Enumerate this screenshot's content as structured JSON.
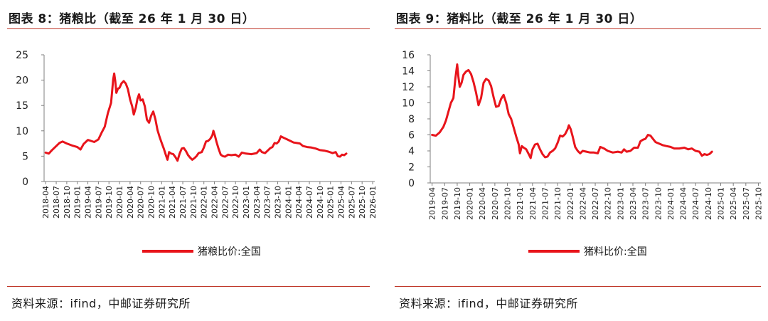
{
  "colors": {
    "line": "#e8141b",
    "accent": "#c0392b",
    "axis": "#7f7f7f"
  },
  "chart_data": [
    {
      "type": "line",
      "title": "图表 8：猪粮比（截至 26 年 1 月 30 日）",
      "source": "资料来源：ifind，中邮证券研究所",
      "ylim": [
        0,
        25
      ],
      "yticks": [
        0,
        5,
        10,
        15,
        20,
        25
      ],
      "x_labels": [
        "2018-04",
        "2018-07",
        "2018-10",
        "2019-01",
        "2019-04",
        "2019-07",
        "2019-10",
        "2020-01",
        "2020-04",
        "2020-07",
        "2020-10",
        "2021-01",
        "2021-04",
        "2021-07",
        "2021-10",
        "2022-01",
        "2022-04",
        "2022-07",
        "2022-10",
        "2023-01",
        "2023-04",
        "2023-07",
        "2023-10",
        "2024-01",
        "2024-04",
        "2024-07",
        "2024-10",
        "2025-01",
        "2025-04",
        "2025-07",
        "2025-10",
        "2026-01"
      ],
      "legend_position": "bottom-center",
      "grid": false,
      "series": [
        {
          "name": "猪粮比价:全国",
          "points": [
            [
              0,
              5.7
            ],
            [
              0.3,
              5.5
            ],
            [
              0.6,
              6.2
            ],
            [
              1,
              7.0
            ],
            [
              1.3,
              7.6
            ],
            [
              1.6,
              7.9
            ],
            [
              2,
              7.5
            ],
            [
              2.5,
              7.1
            ],
            [
              3,
              6.8
            ],
            [
              3.3,
              6.3
            ],
            [
              3.6,
              7.4
            ],
            [
              4,
              8.2
            ],
            [
              4.3,
              8.0
            ],
            [
              4.6,
              7.8
            ],
            [
              5,
              8.3
            ],
            [
              5.3,
              9.6
            ],
            [
              5.6,
              10.8
            ],
            [
              5.9,
              13.5
            ],
            [
              6.2,
              15.5
            ],
            [
              6.4,
              20.2
            ],
            [
              6.5,
              21.3
            ],
            [
              6.6,
              19.8
            ],
            [
              6.7,
              17.5
            ],
            [
              6.85,
              18.3
            ],
            [
              7,
              18.5
            ],
            [
              7.2,
              19.4
            ],
            [
              7.4,
              19.8
            ],
            [
              7.6,
              19.3
            ],
            [
              7.8,
              18.2
            ],
            [
              8,
              16.2
            ],
            [
              8.2,
              14.8
            ],
            [
              8.35,
              13.2
            ],
            [
              8.55,
              14.6
            ],
            [
              8.7,
              16.3
            ],
            [
              8.85,
              17.2
            ],
            [
              9,
              16.0
            ],
            [
              9.2,
              16.2
            ],
            [
              9.4,
              14.8
            ],
            [
              9.6,
              12.2
            ],
            [
              9.8,
              11.6
            ],
            [
              10,
              13.0
            ],
            [
              10.2,
              13.8
            ],
            [
              10.4,
              12.3
            ],
            [
              10.6,
              10.2
            ],
            [
              10.8,
              8.8
            ],
            [
              11,
              7.6
            ],
            [
              11.2,
              6.5
            ],
            [
              11.4,
              5.2
            ],
            [
              11.55,
              4.3
            ],
            [
              11.7,
              5.8
            ],
            [
              11.9,
              5.5
            ],
            [
              12.1,
              5.4
            ],
            [
              12.3,
              4.8
            ],
            [
              12.5,
              4.1
            ],
            [
              12.7,
              5.5
            ],
            [
              12.9,
              6.5
            ],
            [
              13.1,
              6.6
            ],
            [
              13.3,
              6.0
            ],
            [
              13.5,
              5.2
            ],
            [
              13.7,
              4.7
            ],
            [
              13.9,
              4.3
            ],
            [
              14.1,
              4.6
            ],
            [
              14.3,
              5.0
            ],
            [
              14.5,
              5.6
            ],
            [
              14.8,
              5.8
            ],
            [
              15,
              6.7
            ],
            [
              15.2,
              7.9
            ],
            [
              15.4,
              8.0
            ],
            [
              15.6,
              8.4
            ],
            [
              15.8,
              9.1
            ],
            [
              15.9,
              10.0
            ],
            [
              16.05,
              9.0
            ],
            [
              16.2,
              7.8
            ],
            [
              16.4,
              6.4
            ],
            [
              16.6,
              5.3
            ],
            [
              16.8,
              5.0
            ],
            [
              17,
              4.9
            ],
            [
              17.3,
              5.3
            ],
            [
              17.6,
              5.2
            ],
            [
              18,
              5.3
            ],
            [
              18.3,
              4.9
            ],
            [
              18.6,
              5.7
            ],
            [
              19,
              5.5
            ],
            [
              19.5,
              5.4
            ],
            [
              20,
              5.6
            ],
            [
              20.3,
              6.3
            ],
            [
              20.5,
              5.8
            ],
            [
              20.8,
              5.6
            ],
            [
              21,
              6.0
            ],
            [
              21.3,
              6.6
            ],
            [
              21.5,
              6.8
            ],
            [
              21.7,
              7.6
            ],
            [
              21.9,
              7.5
            ],
            [
              22.1,
              7.9
            ],
            [
              22.3,
              8.9
            ],
            [
              22.6,
              8.6
            ],
            [
              22.9,
              8.3
            ],
            [
              23.2,
              8.0
            ],
            [
              23.5,
              7.7
            ],
            [
              23.8,
              7.6
            ],
            [
              24.1,
              7.5
            ],
            [
              24.4,
              7.0
            ],
            [
              24.8,
              6.8
            ],
            [
              25.2,
              6.7
            ],
            [
              25.6,
              6.5
            ],
            [
              26,
              6.2
            ],
            [
              26.4,
              6.1
            ],
            [
              26.8,
              5.9
            ],
            [
              27.2,
              5.6
            ],
            [
              27.5,
              5.8
            ],
            [
              27.7,
              5.0
            ],
            [
              27.9,
              4.9
            ],
            [
              28.1,
              5.3
            ],
            [
              28.3,
              5.2
            ],
            [
              28.5,
              5.5
            ]
          ]
        }
      ]
    },
    {
      "type": "line",
      "title": "图表 9：猪料比（截至 26 年 1 月 30 日）",
      "source": "资料来源：ifind，中邮证券研究所",
      "ylim": [
        0,
        16
      ],
      "yticks": [
        0,
        2,
        4,
        6,
        8,
        10,
        12,
        14,
        16
      ],
      "x_labels": [
        "2019-04",
        "2019-07",
        "2019-10",
        "2020-01",
        "2020-04",
        "2020-07",
        "2020-10",
        "2021-01",
        "2021-04",
        "2021-07",
        "2021-10",
        "2022-01",
        "2022-04",
        "2022-07",
        "2022-10",
        "2023-01",
        "2023-04",
        "2023-07",
        "2023-10",
        "2024-01",
        "2024-04",
        "2024-07",
        "2024-10",
        "2025-01",
        "2025-04",
        "2025-07",
        "2025-10"
      ],
      "legend_position": "bottom-center",
      "grid": false,
      "series": [
        {
          "name": "猪料比价:全国",
          "points": [
            [
              0,
              6.0
            ],
            [
              0.3,
              5.9
            ],
            [
              0.6,
              6.3
            ],
            [
              0.9,
              7.0
            ],
            [
              1.1,
              7.8
            ],
            [
              1.3,
              8.9
            ],
            [
              1.5,
              10.0
            ],
            [
              1.7,
              10.6
            ],
            [
              1.85,
              13.0
            ],
            [
              2,
              14.8
            ],
            [
              2.1,
              13.2
            ],
            [
              2.2,
              12.0
            ],
            [
              2.35,
              12.5
            ],
            [
              2.5,
              13.5
            ],
            [
              2.7,
              13.9
            ],
            [
              2.9,
              14.1
            ],
            [
              3.1,
              13.6
            ],
            [
              3.3,
              12.6
            ],
            [
              3.5,
              11.3
            ],
            [
              3.7,
              9.7
            ],
            [
              3.9,
              10.6
            ],
            [
              4.1,
              12.5
            ],
            [
              4.3,
              13.0
            ],
            [
              4.5,
              12.8
            ],
            [
              4.7,
              12.1
            ],
            [
              4.9,
              10.7
            ],
            [
              5.1,
              9.5
            ],
            [
              5.3,
              9.6
            ],
            [
              5.5,
              10.5
            ],
            [
              5.7,
              11.0
            ],
            [
              5.9,
              10.0
            ],
            [
              6.1,
              8.6
            ],
            [
              6.3,
              8.0
            ],
            [
              6.5,
              6.9
            ],
            [
              6.7,
              5.8
            ],
            [
              6.9,
              4.8
            ],
            [
              7.0,
              3.7
            ],
            [
              7.15,
              4.6
            ],
            [
              7.3,
              4.4
            ],
            [
              7.5,
              4.2
            ],
            [
              7.7,
              3.6
            ],
            [
              7.85,
              3.1
            ],
            [
              8,
              4.2
            ],
            [
              8.2,
              4.8
            ],
            [
              8.4,
              4.9
            ],
            [
              8.6,
              4.2
            ],
            [
              8.8,
              3.6
            ],
            [
              9,
              3.2
            ],
            [
              9.2,
              3.3
            ],
            [
              9.4,
              3.8
            ],
            [
              9.6,
              4.0
            ],
            [
              9.8,
              4.3
            ],
            [
              10,
              5.0
            ],
            [
              10.2,
              5.9
            ],
            [
              10.4,
              5.8
            ],
            [
              10.6,
              6.1
            ],
            [
              10.8,
              6.7
            ],
            [
              10.9,
              7.2
            ],
            [
              11.05,
              6.7
            ],
            [
              11.2,
              5.8
            ],
            [
              11.4,
              4.5
            ],
            [
              11.6,
              4.0
            ],
            [
              11.8,
              3.7
            ],
            [
              12,
              4.0
            ],
            [
              12.3,
              3.9
            ],
            [
              12.6,
              3.8
            ],
            [
              12.9,
              3.8
            ],
            [
              13.2,
              3.7
            ],
            [
              13.4,
              4.5
            ],
            [
              13.7,
              4.3
            ],
            [
              14,
              4.0
            ],
            [
              14.4,
              3.8
            ],
            [
              14.8,
              3.9
            ],
            [
              15.1,
              3.8
            ],
            [
              15.3,
              4.2
            ],
            [
              15.5,
              3.9
            ],
            [
              15.8,
              4.0
            ],
            [
              16.1,
              4.4
            ],
            [
              16.4,
              4.4
            ],
            [
              16.6,
              5.2
            ],
            [
              16.8,
              5.4
            ],
            [
              17,
              5.5
            ],
            [
              17.2,
              6.0
            ],
            [
              17.4,
              5.9
            ],
            [
              17.6,
              5.5
            ],
            [
              17.8,
              5.1
            ],
            [
              18.1,
              4.9
            ],
            [
              18.4,
              4.7
            ],
            [
              18.7,
              4.6
            ],
            [
              19,
              4.5
            ],
            [
              19.3,
              4.3
            ],
            [
              19.7,
              4.3
            ],
            [
              20.1,
              4.4
            ],
            [
              20.4,
              4.2
            ],
            [
              20.7,
              4.3
            ],
            [
              21,
              4.0
            ],
            [
              21.3,
              3.9
            ],
            [
              21.5,
              3.4
            ],
            [
              21.7,
              3.6
            ],
            [
              21.9,
              3.5
            ],
            [
              22.1,
              3.6
            ],
            [
              22.3,
              3.9
            ]
          ]
        }
      ]
    }
  ]
}
